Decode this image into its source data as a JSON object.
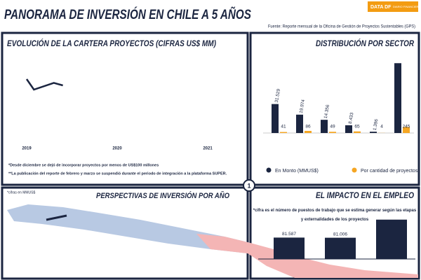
{
  "header": {
    "title": "PANORAMA DE INVERSIÓN EN CHILE A 5 AÑOS",
    "logo": "DATA DF",
    "logo_sub": "DIARIO FINANCIERO",
    "source": "Fuente: Reporte mensual de la Oficina de Gestión de Proyectos Sustentables (GPS)"
  },
  "page_number": "1",
  "map_panel": {
    "title": "PERSPECTIVAS DE INVERSIÓN POR AÑO",
    "note": "*cifras en MMUS$"
  },
  "chart_data": [
    {
      "type": "line",
      "title": "EVOLUCIÓN DE LA CARTERA PROYECTOS (CIFRAS US$ MM)",
      "color": "#1b2540",
      "x": [
        2019,
        2019.08,
        2019.3,
        2019.4
      ],
      "values": [
        72.5,
        60,
        68,
        65
      ],
      "xlim": [
        2019,
        2021
      ],
      "xticks": [
        2019,
        2020,
        2021
      ],
      "ylim": [
        0,
        100
      ],
      "notes": [
        "*Desde diciembre se dejó de incorporar proyectos por menos de US$100 millones",
        "**La publicación del reporte de febrero y marzo se suspendió durante el periodo de integración a la plataforma SUPER."
      ]
    },
    {
      "type": "bar",
      "title": "DISTRIBUCIÓN POR SECTOR",
      "categories": [
        null,
        null,
        null,
        null,
        null,
        null
      ],
      "ylim": [
        0,
        80000
      ],
      "y2lim": [
        0,
        3000
      ],
      "series": [
        {
          "name": "En Monto (MMUS$)",
          "color": "#1b2540",
          "values": [
            31529,
            19974,
            14356,
            8433,
            1396,
            76000
          ],
          "value_labels": [
            "31.529",
            "19.974",
            "14.356",
            "8.433",
            "1.396",
            null
          ]
        },
        {
          "name": "Por cantidad de proyectos",
          "color": "#f5a623",
          "axis": "y2",
          "values": [
            41,
            86,
            49,
            65,
            4,
            245
          ]
        }
      ]
    },
    {
      "type": "bar",
      "title": "EL IMPACTO EN EL EMPLEO",
      "note": "*cifra es el número de puestos de trabajo que se estima generar según las etapas y externalidades de los proyectos",
      "categories": [
        null,
        null,
        null
      ],
      "color": "#1b2540",
      "values": [
        81587,
        81006,
        150000
      ],
      "value_labels": [
        "81.587",
        "81.006",
        null
      ],
      "ylim": [
        0,
        160000
      ]
    }
  ]
}
